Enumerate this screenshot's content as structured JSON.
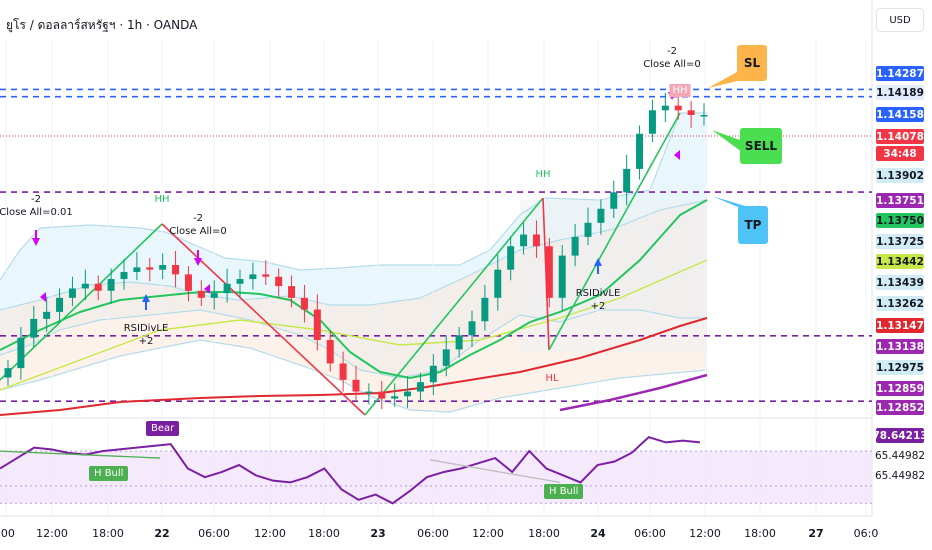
{
  "header": {
    "title": "ยูโร / ดอลลาร์สหรัฐฯ · 1h · OANDA"
  },
  "currency_button": "USD",
  "price_labels": [
    {
      "text": "1.14287",
      "bg": "#2962ff",
      "fg": "#ffffff"
    },
    {
      "text": "1.14189",
      "bg": "#e3ecfd",
      "fg": "#131722"
    },
    {
      "text": "1.14158",
      "bg": "#2962ff",
      "fg": "#ffffff"
    },
    {
      "text": "1.14078",
      "bg": "#f23645",
      "fg": "#ffffff"
    },
    {
      "text": "34:48",
      "bg": "#f23645",
      "fg": "#ffffff"
    },
    {
      "text": "1.13902",
      "bg": "#d1ecf6",
      "fg": "#131722"
    },
    {
      "text": "1.13751",
      "bg": "#9c27b0",
      "fg": "#ffffff"
    },
    {
      "text": "1.13750",
      "bg": "#22c55e",
      "fg": "#131722"
    },
    {
      "text": "1.13725",
      "bg": "#d1ecf6",
      "fg": "#131722"
    },
    {
      "text": "1.13442",
      "bg": "#c6e84a",
      "fg": "#131722"
    },
    {
      "text": "1.13439",
      "bg": "#d1ecf6",
      "fg": "#131722"
    },
    {
      "text": "1.13262",
      "bg": "#d1ecf6",
      "fg": "#131722"
    },
    {
      "text": "1.13147",
      "bg": "#e0282e",
      "fg": "#ffffff"
    },
    {
      "text": "1.13138",
      "bg": "#9c27b0",
      "fg": "#ffffff"
    },
    {
      "text": "1.12975",
      "bg": "#d1ecf6",
      "fg": "#131722"
    },
    {
      "text": "1.12859",
      "bg": "#9c27b0",
      "fg": "#ffffff"
    },
    {
      "text": "1.12852",
      "bg": "#9c27b0",
      "fg": "#ffffff"
    },
    {
      "text": "78.64213",
      "bg": "#7b1fa2",
      "fg": "#ffffff"
    },
    {
      "text": "65.44982",
      "bg": "#ffffff",
      "fg": "#131722"
    },
    {
      "text": "65.44982",
      "bg": "#ffffff",
      "fg": "#131722"
    }
  ],
  "x_axis": [
    {
      "text": ":00",
      "bold": false
    },
    {
      "text": "12:00",
      "bold": false
    },
    {
      "text": "18:00",
      "bold": false
    },
    {
      "text": "22",
      "bold": true
    },
    {
      "text": "06:00",
      "bold": false
    },
    {
      "text": "12:00",
      "bold": false
    },
    {
      "text": "18:00",
      "bold": false
    },
    {
      "text": "23",
      "bold": true
    },
    {
      "text": "06:00",
      "bold": false
    },
    {
      "text": "12:00",
      "bold": false
    },
    {
      "text": "18:00",
      "bold": false
    },
    {
      "text": "24",
      "bold": true
    },
    {
      "text": "06:00",
      "bold": false
    },
    {
      "text": "12:00",
      "bold": false
    },
    {
      "text": "18:00",
      "bold": false
    },
    {
      "text": "27",
      "bold": true
    },
    {
      "text": "06:0",
      "bold": false
    }
  ],
  "annotations": {
    "close_all_1": {
      "line1": "-2",
      "line2": "Close All=0.01"
    },
    "close_all_2": {
      "line1": "-2",
      "line2": "Close All=0"
    },
    "close_all_3": {
      "line1": "-2",
      "line2": "Close All=0"
    },
    "rsidiv_1": {
      "line1": "RSIDivLE",
      "line2": "+2"
    },
    "rsidiv_2": {
      "line1": "RSIDivLE",
      "line2": "+2"
    },
    "hh_1": "HH",
    "hh_2": "HH",
    "hh_3": "HH",
    "hl": "HL",
    "bear_tag": "Bear",
    "hbull_1": "H Bull",
    "hbull_2": "H Bull",
    "sl": "SL",
    "sell": "SELL",
    "tp": "TP"
  },
  "colors": {
    "bull": "#089981",
    "bear": "#f23645",
    "blue_dash": "#2962ff",
    "purple_dash": "#7b1fa2",
    "rsi": "#7b1fa2",
    "ema_green": "#22c55e",
    "ema_red": "#e0282e",
    "ema_purple": "#9c27b0",
    "band": "#b5dcea"
  },
  "chart_data": {
    "type": "line",
    "title": "ยูโร / ดอลลาร์สหรัฐฯ · 1h · OANDA",
    "x_ticks": [
      ":00",
      "12:00",
      "18:00",
      "22",
      "06:00",
      "12:00",
      "18:00",
      "23",
      "06:00",
      "12:00",
      "18:00",
      "24",
      "06:00",
      "12:00",
      "18:00",
      "27",
      "06:0"
    ],
    "ylim": [
      1.128,
      1.144
    ],
    "horizontal_levels": [
      {
        "price": 1.14189,
        "style": "blue-dashed"
      },
      {
        "price": 1.14158,
        "style": "blue-dashed"
      },
      {
        "price": 1.13751,
        "style": "purple-dashed"
      },
      {
        "price": 1.13138,
        "style": "purple-dashed"
      },
      {
        "price": 1.12859,
        "style": "purple-dashed"
      }
    ],
    "series": [
      {
        "name": "price_close",
        "values": [
          1.13,
          1.1313,
          1.1321,
          1.1324,
          1.133,
          1.1334,
          1.1336,
          1.1333,
          1.1338,
          1.1341,
          1.1343,
          1.1342,
          1.1344,
          1.134,
          1.1333,
          1.133,
          1.1332,
          1.1336,
          1.1338,
          1.134,
          1.1339,
          1.1335,
          1.133,
          1.1325,
          1.1312,
          1.1302,
          1.1295,
          1.129,
          1.129,
          1.1287,
          1.1288,
          1.129,
          1.1294,
          1.1301,
          1.1308,
          1.1314,
          1.132,
          1.133,
          1.1342,
          1.1352,
          1.1357,
          1.1352,
          1.133,
          1.1348,
          1.1356,
          1.1362,
          1.1368,
          1.1375,
          1.1385,
          1.14,
          1.141,
          1.1412,
          1.141,
          1.1408,
          1.1408
        ]
      },
      {
        "name": "ema_green",
        "values": [
          1.1318,
          1.1322,
          1.1326,
          1.133,
          1.1333,
          1.1335,
          1.1334,
          1.1332,
          1.1327,
          1.1318,
          1.1312,
          1.1308,
          1.131,
          1.1318,
          1.133,
          1.1336,
          1.134,
          1.1355,
          1.1366,
          1.1375
        ]
      },
      {
        "name": "ema_red",
        "values": [
          1.1282,
          1.1284,
          1.1286,
          1.1289,
          1.1292,
          1.1294,
          1.1298,
          1.1303,
          1.131,
          1.1315
        ]
      },
      {
        "name": "rsi",
        "values": [
          60,
          66,
          72,
          71,
          69,
          68,
          70,
          71,
          72,
          73,
          74,
          60,
          55,
          58,
          62,
          56,
          53,
          52,
          55,
          60,
          48,
          42,
          45,
          40,
          47,
          55,
          58,
          60,
          63,
          66,
          58,
          70,
          60,
          56,
          52,
          62,
          64,
          69,
          78,
          75,
          76,
          75
        ]
      }
    ],
    "rsi_levels": [
      78.64213,
      65.44982
    ],
    "annotations": [
      "SL",
      "SELL",
      "TP",
      "HH",
      "HL",
      "RSIDivLE +2",
      "Close All=0",
      "Bear",
      "H Bull"
    ]
  }
}
